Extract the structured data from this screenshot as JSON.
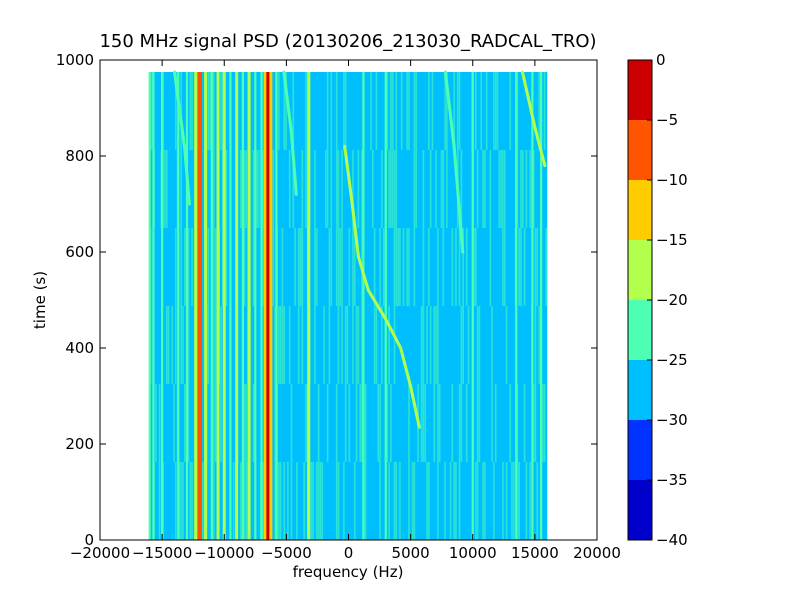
{
  "chart_data": {
    "type": "heatmap",
    "title": "150 MHz signal PSD (20130206_213030_RADCAL_TRO)",
    "xlabel": "frequency (Hz)",
    "ylabel": "time (s)",
    "xlim": [
      -20000,
      20000
    ],
    "ylim": [
      0,
      1000
    ],
    "data_extent": {
      "x": [
        -16000,
        16000
      ],
      "y": [
        0,
        975
      ]
    },
    "x_ticks": [
      -20000,
      -15000,
      -10000,
      -5000,
      0,
      5000,
      10000,
      15000,
      20000
    ],
    "x_tick_labels": [
      "−20000",
      "−15000",
      "−10000",
      "−5000",
      "0",
      "5000",
      "10000",
      "15000",
      "20000"
    ],
    "y_ticks": [
      0,
      200,
      400,
      600,
      800,
      1000
    ],
    "y_tick_labels": [
      "0",
      "200",
      "400",
      "600",
      "800",
      "1000"
    ],
    "colorbar": {
      "levels": [
        -40,
        -35,
        -30,
        -25,
        -20,
        -15,
        -10,
        -5,
        0
      ],
      "tick_labels": [
        "−40",
        "−35",
        "−30",
        "−25",
        "−20",
        "−15",
        "−10",
        "−5",
        "0"
      ],
      "colors": [
        "#0000cd",
        "#0033ff",
        "#00bfff",
        "#4cffb2",
        "#b2ff4c",
        "#ffcc00",
        "#ff5500",
        "#cc0000"
      ]
    },
    "background_level_colors": [
      "#00bfff",
      "#4cffb2"
    ],
    "vertical_features": [
      {
        "freq": -16000,
        "level": -22
      },
      {
        "freq": -15700,
        "level": -22
      },
      {
        "freq": -15000,
        "level": -22
      },
      {
        "freq": -13700,
        "level": -22
      },
      {
        "freq": -13000,
        "level": -22
      },
      {
        "freq": -12300,
        "level": -17
      },
      {
        "freq": -11950,
        "level": -6
      },
      {
        "freq": -11500,
        "level": -17
      },
      {
        "freq": -11000,
        "level": -22
      },
      {
        "freq": -10500,
        "level": -17
      },
      {
        "freq": -10000,
        "level": -17
      },
      {
        "freq": -9500,
        "level": -22
      },
      {
        "freq": -9000,
        "level": -17
      },
      {
        "freq": -8500,
        "level": -22
      },
      {
        "freq": -8000,
        "level": -17
      },
      {
        "freq": -7500,
        "level": -22
      },
      {
        "freq": -7000,
        "level": -22
      },
      {
        "freq": -6700,
        "level": -12
      },
      {
        "freq": -6450,
        "level": -3
      },
      {
        "freq": -6250,
        "level": -12
      },
      {
        "freq": -5800,
        "level": -22
      },
      {
        "freq": -3200,
        "level": -17
      },
      {
        "freq": 1200,
        "level": -22
      },
      {
        "freq": 3000,
        "level": -22
      },
      {
        "freq": 10000,
        "level": -22
      },
      {
        "freq": 13500,
        "level": -22
      },
      {
        "freq": 14800,
        "level": -22
      },
      {
        "freq": 15500,
        "level": -22
      }
    ],
    "drifting_tracks": [
      {
        "points": [
          [
            -300,
            820
          ],
          [
            300,
            700
          ],
          [
            800,
            590
          ],
          [
            1600,
            520
          ],
          [
            3000,
            460
          ],
          [
            4200,
            400
          ],
          [
            5000,
            320
          ],
          [
            5700,
            235
          ]
        ],
        "level": -17
      },
      {
        "points": [
          [
            -14000,
            975
          ],
          [
            -13200,
            820
          ],
          [
            -12800,
            700
          ]
        ],
        "level": -22
      },
      {
        "points": [
          [
            -5200,
            975
          ],
          [
            -4600,
            850
          ],
          [
            -4200,
            720
          ]
        ],
        "level": -22
      },
      {
        "points": [
          [
            7800,
            975
          ],
          [
            8500,
            820
          ],
          [
            9200,
            600
          ]
        ],
        "level": -22
      },
      {
        "points": [
          [
            14000,
            975
          ],
          [
            15000,
            860
          ],
          [
            15800,
            780
          ]
        ],
        "level": -17
      }
    ]
  }
}
